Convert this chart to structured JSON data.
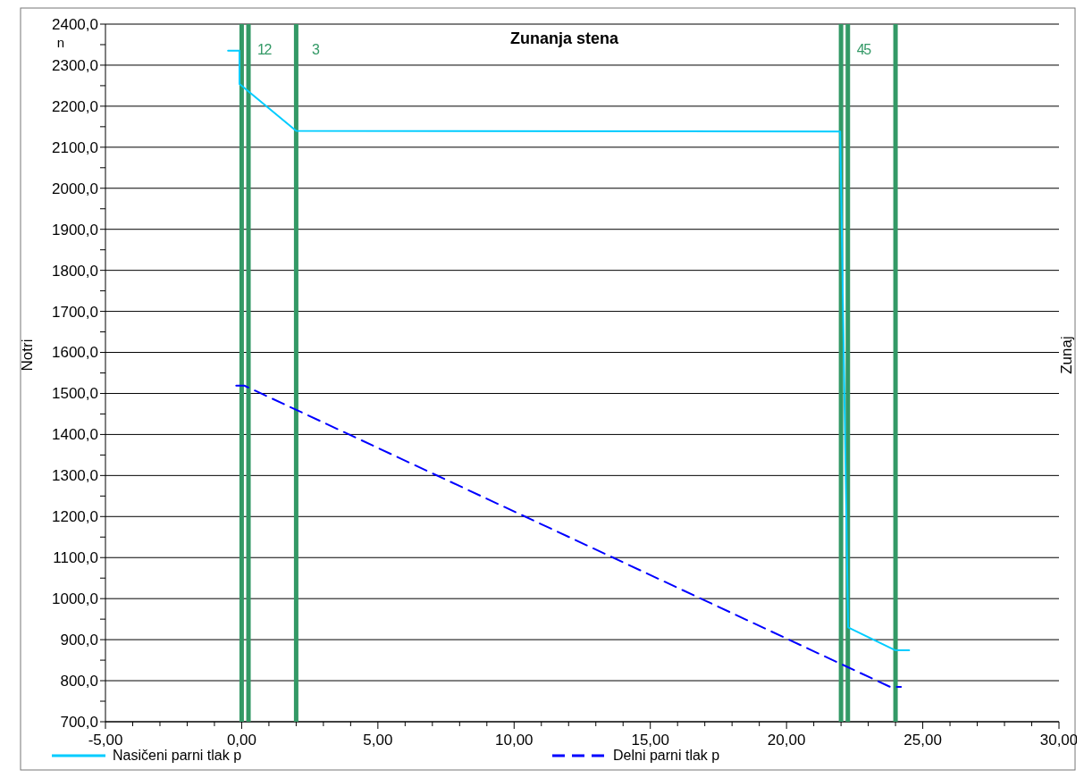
{
  "chart_data": {
    "type": "line",
    "title": "Zunanja stena",
    "ylabel": "Notri",
    "y2label": "Zunaj",
    "annotations": [
      "n",
      "1",
      "2",
      "3",
      "4",
      "5"
    ],
    "series": [
      {
        "name": "Nasičeni parni tlak p",
        "color": "#00ccff",
        "line_style": "solid",
        "x": [
          -0.5,
          -0.08,
          -0.08,
          2.0,
          21.97,
          22.26,
          24.0,
          24.5
        ],
        "values": [
          2335,
          2335,
          2254,
          2140,
          2138,
          930,
          874,
          874
        ]
      },
      {
        "name": "Delni parni tlak p",
        "color": "#0000ff",
        "line_style": "dashed",
        "x": [
          -0.2,
          0.1,
          23.8,
          24.2
        ],
        "values": [
          1519,
          1519,
          785,
          785
        ]
      }
    ],
    "ref_lines": [
      {
        "axis": "x",
        "value": 0,
        "color": "#339966"
      },
      {
        "axis": "x",
        "value": 0.25,
        "color": "#339966"
      },
      {
        "axis": "x",
        "value": 2.0,
        "color": "#339966"
      },
      {
        "axis": "x",
        "value": 22.0,
        "color": "#339966"
      },
      {
        "axis": "x",
        "value": 22.25,
        "color": "#339966"
      },
      {
        "axis": "x",
        "value": 24.0,
        "color": "#339966"
      }
    ],
    "xlim": [
      -5,
      30
    ],
    "xticks": [
      {
        "value": -5,
        "label": "-5,00"
      },
      {
        "value": -4,
        "label": null
      },
      {
        "value": -3,
        "label": null
      },
      {
        "value": -2,
        "label": null
      },
      {
        "value": -1,
        "label": null
      },
      {
        "value": 0,
        "label": "0,00"
      },
      {
        "value": 1,
        "label": null
      },
      {
        "value": 2,
        "label": null
      },
      {
        "value": 3,
        "label": null
      },
      {
        "value": 4,
        "label": null
      },
      {
        "value": 5,
        "label": "5,00"
      },
      {
        "value": 6,
        "label": null
      },
      {
        "value": 7,
        "label": null
      },
      {
        "value": 8,
        "label": null
      },
      {
        "value": 9,
        "label": null
      },
      {
        "value": 10,
        "label": "10,00"
      },
      {
        "value": 11,
        "label": null
      },
      {
        "value": 12,
        "label": null
      },
      {
        "value": 13,
        "label": null
      },
      {
        "value": 14,
        "label": null
      },
      {
        "value": 15,
        "label": "15,00"
      },
      {
        "value": 16,
        "label": null
      },
      {
        "value": 17,
        "label": null
      },
      {
        "value": 18,
        "label": null
      },
      {
        "value": 19,
        "label": null
      },
      {
        "value": 20,
        "label": "20,00"
      },
      {
        "value": 21,
        "label": null
      },
      {
        "value": 22,
        "label": null
      },
      {
        "value": 23,
        "label": null
      },
      {
        "value": 24,
        "label": null
      },
      {
        "value": 25,
        "label": "25,00"
      },
      {
        "value": 26,
        "label": null
      },
      {
        "value": 27,
        "label": null
      },
      {
        "value": 28,
        "label": null
      },
      {
        "value": 29,
        "label": null
      },
      {
        "value": 30,
        "label": "30,00"
      }
    ],
    "ylim": [
      700,
      2400
    ],
    "yticks": [
      {
        "value": 700,
        "label": "700,0"
      },
      {
        "value": 750,
        "label": null
      },
      {
        "value": 800,
        "label": "800,0"
      },
      {
        "value": 850,
        "label": null
      },
      {
        "value": 900,
        "label": "900,0"
      },
      {
        "value": 950,
        "label": null
      },
      {
        "value": 1000,
        "label": "1000,0"
      },
      {
        "value": 1050,
        "label": null
      },
      {
        "value": 1100,
        "label": "1100,0"
      },
      {
        "value": 1150,
        "label": null
      },
      {
        "value": 1200,
        "label": "1200,0"
      },
      {
        "value": 1250,
        "label": null
      },
      {
        "value": 1300,
        "label": "1300,0"
      },
      {
        "value": 1350,
        "label": null
      },
      {
        "value": 1400,
        "label": "1400,0"
      },
      {
        "value": 1450,
        "label": null
      },
      {
        "value": 1500,
        "label": "1500,0"
      },
      {
        "value": 1550,
        "label": null
      },
      {
        "value": 1600,
        "label": "1600,0"
      },
      {
        "value": 1650,
        "label": null
      },
      {
        "value": 1700,
        "label": "1700,0"
      },
      {
        "value": 1750,
        "label": null
      },
      {
        "value": 1800,
        "label": "1800,0"
      },
      {
        "value": 1850,
        "label": null
      },
      {
        "value": 1900,
        "label": "1900,0"
      },
      {
        "value": 1950,
        "label": null
      },
      {
        "value": 2000,
        "label": "2000,0"
      },
      {
        "value": 2050,
        "label": null
      },
      {
        "value": 2100,
        "label": "2100,0"
      },
      {
        "value": 2150,
        "label": null
      },
      {
        "value": 2200,
        "label": "2200,0"
      },
      {
        "value": 2250,
        "label": null
      },
      {
        "value": 2300,
        "label": "2300,0"
      },
      {
        "value": 2350,
        "label": null
      },
      {
        "value": 2400,
        "label": "2400,0"
      }
    ],
    "grid": "y",
    "legend": "bottom"
  }
}
